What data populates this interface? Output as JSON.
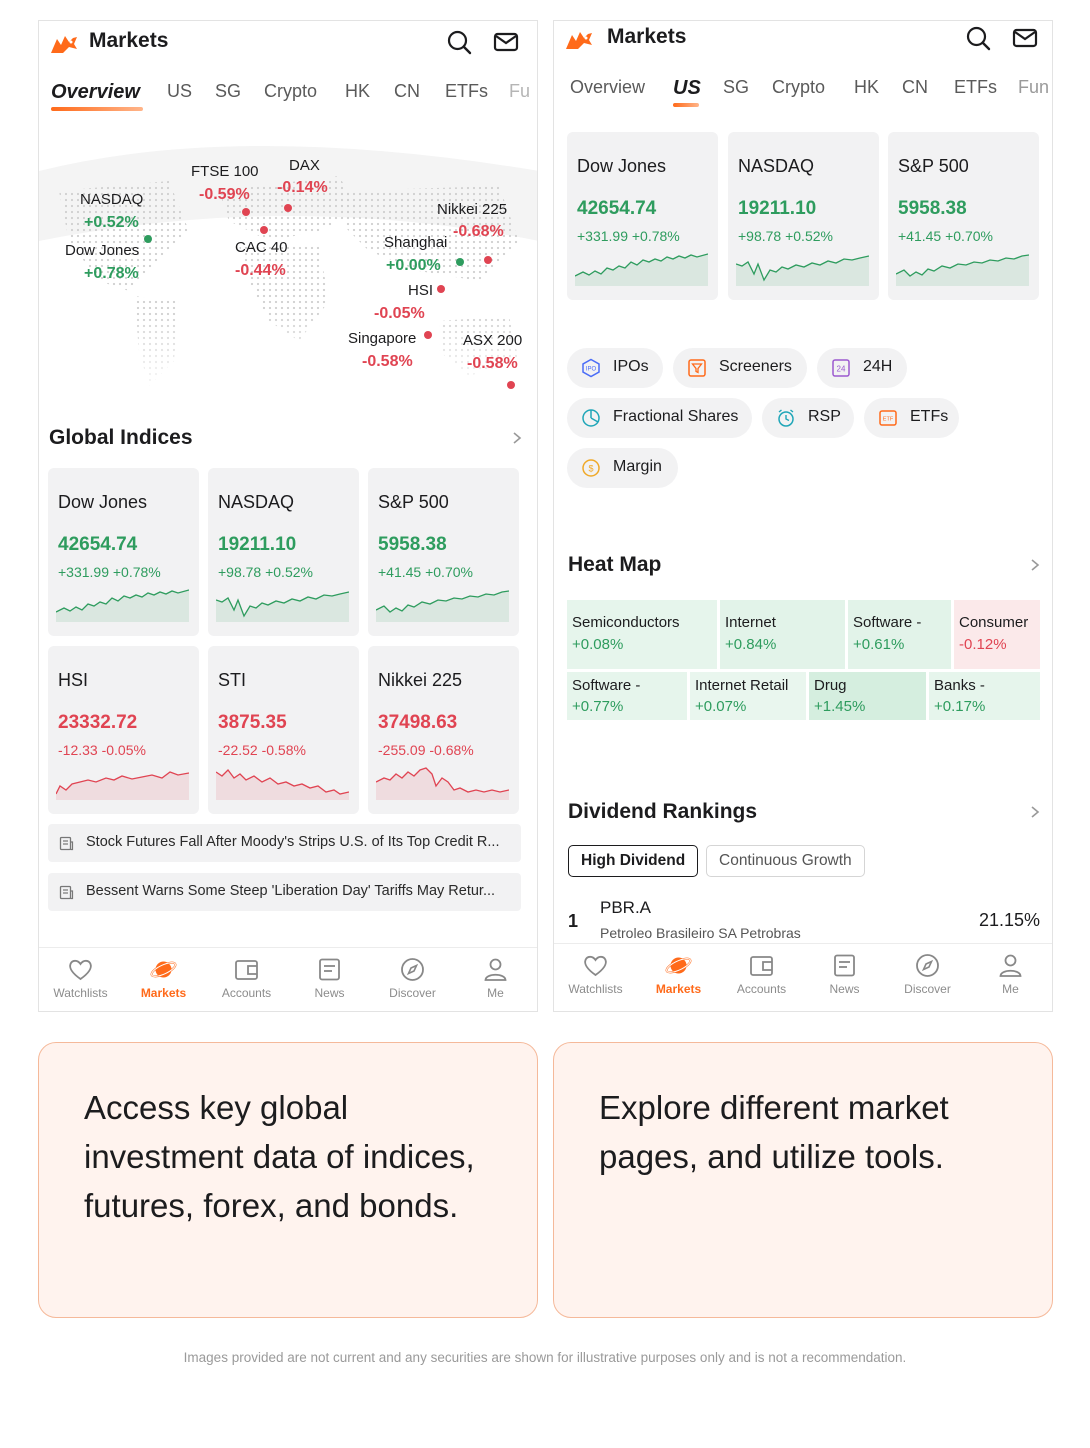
{
  "app": {
    "title": "Markets",
    "brand_color": "#ff6a1a"
  },
  "colors": {
    "positive": "#2e9c5e",
    "negative": "#e04452",
    "card_bg": "#f2f2f3"
  },
  "icons": {
    "logo": "bull-logo",
    "search": "search-icon",
    "mail": "mail-icon",
    "chevron": "chevron-right-icon",
    "news": "news-icon"
  },
  "tabs": [
    "Overview",
    "US",
    "SG",
    "Crypto",
    "HK",
    "CN",
    "ETFs",
    "Fu"
  ],
  "tabs_right": [
    "Overview",
    "US",
    "SG",
    "Crypto",
    "HK",
    "CN",
    "ETFs",
    "Fun"
  ],
  "left": {
    "active_tab": "Overview",
    "map": [
      {
        "name": "FTSE 100",
        "change": "-0.59%",
        "trend": "neg"
      },
      {
        "name": "DAX",
        "change": "-0.14%",
        "trend": "neg"
      },
      {
        "name": "NASDAQ",
        "change": "+0.52%",
        "trend": "pos"
      },
      {
        "name": "Nikkei 225",
        "change": "-0.68%",
        "trend": "neg"
      },
      {
        "name": "Dow Jones",
        "change": "+0.78%",
        "trend": "pos"
      },
      {
        "name": "CAC 40",
        "change": "-0.44%",
        "trend": "neg"
      },
      {
        "name": "Shanghai",
        "change": "+0.00%",
        "trend": "pos"
      },
      {
        "name": "HSI",
        "change": "-0.05%",
        "trend": "neg"
      },
      {
        "name": "Singapore",
        "change": "-0.58%",
        "trend": "neg"
      },
      {
        "name": "ASX 200",
        "change": "-0.58%",
        "trend": "neg"
      }
    ],
    "global_indices_title": "Global Indices",
    "cards": [
      {
        "name": "Dow Jones",
        "value": "42654.74",
        "change": "+331.99 +0.78%",
        "trend": "pos"
      },
      {
        "name": "NASDAQ",
        "value": "19211.10",
        "change": "+98.78 +0.52%",
        "trend": "pos"
      },
      {
        "name": "S&P 500",
        "value": "5958.38",
        "change": "+41.45 +0.70%",
        "trend": "pos"
      },
      {
        "name": "HSI",
        "value": "23332.72",
        "change": "-12.33 -0.05%",
        "trend": "neg"
      },
      {
        "name": "STI",
        "value": "3875.35",
        "change": "-22.52 -0.58%",
        "trend": "neg"
      },
      {
        "name": "Nikkei 225",
        "value": "37498.63",
        "change": "-255.09 -0.68%",
        "trend": "neg"
      }
    ],
    "news": [
      "Stock Futures Fall After Moody's Strips U.S. of Its Top Credit R...",
      "Bessent Warns Some Steep 'Liberation Day' Tariffs May Retur..."
    ]
  },
  "right": {
    "active_tab": "US",
    "cards": [
      {
        "name": "Dow Jones",
        "value": "42654.74",
        "change": "+331.99 +0.78%",
        "trend": "pos"
      },
      {
        "name": "NASDAQ",
        "value": "19211.10",
        "change": "+98.78 +0.52%",
        "trend": "pos"
      },
      {
        "name": "S&P 500",
        "value": "5958.38",
        "change": "+41.45 +0.70%",
        "trend": "pos"
      }
    ],
    "tools": [
      "IPOs",
      "Screeners",
      "24H",
      "Fractional Shares",
      "RSP",
      "ETFs",
      "Margin"
    ],
    "heatmap_title": "Heat Map",
    "heatmap": [
      {
        "name": "Semiconductors",
        "change": "+0.08%",
        "trend": "pos"
      },
      {
        "name": "Internet",
        "change": "+0.84%",
        "trend": "pos"
      },
      {
        "name": "Software -",
        "change": "+0.61%",
        "trend": "pos"
      },
      {
        "name": "Consumer",
        "change": "-0.12%",
        "trend": "neg"
      },
      {
        "name": "Software -",
        "change": "+0.77%",
        "trend": "pos"
      },
      {
        "name": "Internet Retail",
        "change": "+0.07%",
        "trend": "pos"
      },
      {
        "name": "Drug",
        "change": "+1.45%",
        "trend": "pos"
      },
      {
        "name": "Banks -",
        "change": "+0.17%",
        "trend": "pos"
      }
    ],
    "dividend_title": "Dividend Rankings",
    "dividend_tabs": [
      "High Dividend",
      "Continuous Growth"
    ],
    "dividend_rows": [
      {
        "rank": "1",
        "symbol": "PBR.A",
        "company": "Petroleo Brasileiro SA Petrobras",
        "yield": "21.15%"
      }
    ]
  },
  "bottom_nav": [
    "Watchlists",
    "Markets",
    "Accounts",
    "News",
    "Discover",
    "Me"
  ],
  "captions": [
    "Access key global investment data of indices, futures, forex, and bonds.",
    "Explore different market pages, and utilize tools."
  ],
  "disclaimer": "Images provided are not current and any securities are shown for illustrative purposes only and is not a recommendation."
}
